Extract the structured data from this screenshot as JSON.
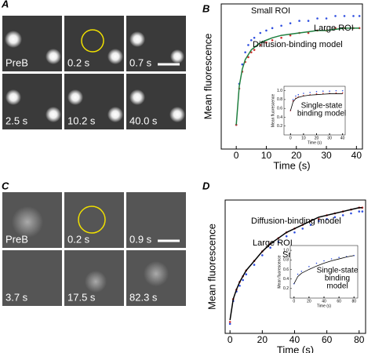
{
  "panel_labels": [
    "A",
    "B",
    "C",
    "D"
  ],
  "image_panels": [
    {
      "frames": [
        "PreB",
        "0.2 s",
        "0.7 s",
        "2.5 s",
        "10.2 s",
        "40.0 s"
      ]
    },
    {
      "frames": [
        "PreB",
        "0.2 s",
        "0.9 s",
        "3.7 s",
        "17.5 s",
        "82.3 s"
      ]
    }
  ],
  "chart_data": [
    {
      "type": "line",
      "x_label": "Time (s)",
      "y_label": "Mean fluorescence",
      "xlim": [
        -5,
        42
      ],
      "ylim": [
        0.45,
        1.05
      ],
      "xticks": [
        0,
        10,
        20,
        30,
        40
      ],
      "x": [
        0,
        1,
        2,
        3,
        4,
        5,
        6,
        8,
        10,
        12,
        15,
        18,
        21,
        24,
        27,
        30,
        33,
        36,
        39,
        41
      ],
      "series": [
        {
          "name": "Small ROI",
          "color": "#3050e0",
          "style": "points",
          "values": [
            0.55,
            0.72,
            0.8,
            0.85,
            0.88,
            0.9,
            0.91,
            0.93,
            0.94,
            0.95,
            0.96,
            0.97,
            0.98,
            0.98,
            0.99,
            0.99,
            1.0,
            1.0,
            1.0,
            1.0
          ]
        },
        {
          "name": "Large ROI",
          "color": "#d03030",
          "style": "points",
          "values": [
            0.55,
            0.7,
            0.77,
            0.81,
            0.83,
            0.85,
            0.86,
            0.88,
            0.89,
            0.9,
            0.91,
            0.92,
            0.93,
            0.93,
            0.94,
            0.94,
            0.95,
            0.95,
            0.95,
            0.95
          ]
        },
        {
          "name": "Diffusion-binding model",
          "color": "#208040",
          "style": "line",
          "values": [
            0.55,
            0.71,
            0.78,
            0.82,
            0.84,
            0.86,
            0.87,
            0.89,
            0.9,
            0.91,
            0.92,
            0.925,
            0.93,
            0.935,
            0.94,
            0.94,
            0.945,
            0.95,
            0.95,
            0.95
          ]
        }
      ]
    },
    {
      "type": "line",
      "x_label": "Time (s)",
      "y_label": "Mean fluorescence",
      "annotation": [
        "Single-state",
        "binding model"
      ],
      "xlim": [
        -5,
        42
      ],
      "ylim": [
        0,
        1.1
      ],
      "xticks": [
        0,
        10,
        20,
        30,
        40
      ],
      "yticks": [
        0.2,
        0.4,
        0.6,
        0.8,
        {
          "value": 1,
          "label": "1.0"
        }
      ],
      "x": [
        0,
        2,
        4,
        6,
        10,
        15,
        20,
        25,
        30,
        35,
        40
      ],
      "series": [
        {
          "color": "#3050e0",
          "style": "points",
          "values": [
            0.55,
            0.8,
            0.88,
            0.91,
            0.94,
            0.96,
            0.98,
            0.99,
            0.99,
            1.0,
            1.0
          ]
        },
        {
          "color": "#d03030",
          "style": "points",
          "values": [
            0.55,
            0.77,
            0.83,
            0.86,
            0.89,
            0.91,
            0.93,
            0.94,
            0.94,
            0.95,
            0.95
          ]
        },
        {
          "color": "#000000",
          "style": "line",
          "values": [
            0.55,
            0.75,
            0.82,
            0.85,
            0.88,
            0.9,
            0.91,
            0.92,
            0.93,
            0.93,
            0.93
          ]
        }
      ]
    },
    {
      "type": "line",
      "x_label": "Time (s)",
      "y_label": "Mean fluorescence",
      "xlim": [
        -3,
        84
      ],
      "ylim": [
        0.25,
        0.95
      ],
      "xticks": [
        0,
        20,
        40,
        60,
        80
      ],
      "x": [
        0,
        2,
        4,
        6,
        8,
        10,
        15,
        20,
        25,
        30,
        35,
        40,
        45,
        50,
        55,
        60,
        65,
        70,
        75,
        80,
        82
      ],
      "series": [
        {
          "name": "Small ROI",
          "color": "#3050e0",
          "style": "points",
          "values": [
            0.3,
            0.42,
            0.47,
            0.5,
            0.53,
            0.56,
            0.61,
            0.66,
            0.7,
            0.73,
            0.76,
            0.78,
            0.8,
            0.82,
            0.84,
            0.85,
            0.86,
            0.87,
            0.88,
            0.89,
            0.89
          ]
        },
        {
          "name": "Large ROI",
          "color": "#d03030",
          "style": "points",
          "values": [
            0.31,
            0.43,
            0.48,
            0.52,
            0.55,
            0.58,
            0.63,
            0.68,
            0.72,
            0.75,
            0.78,
            0.8,
            0.82,
            0.84,
            0.85,
            0.87,
            0.88,
            0.89,
            0.9,
            0.91,
            0.91
          ]
        },
        {
          "name": "Diffusion-binding model",
          "color": "#000000",
          "style": "line",
          "values": [
            0.32,
            0.43,
            0.48,
            0.52,
            0.55,
            0.58,
            0.63,
            0.68,
            0.72,
            0.75,
            0.78,
            0.8,
            0.82,
            0.84,
            0.86,
            0.87,
            0.88,
            0.89,
            0.9,
            0.91,
            0.91
          ]
        }
      ]
    },
    {
      "type": "line",
      "x_label": "Time (s)",
      "y_label": "Mean fluorescence",
      "annotation": [
        "Single-state",
        "binding",
        "model"
      ],
      "xlim": [
        -5,
        85
      ],
      "ylim": [
        0,
        1.1
      ],
      "xticks": [
        0,
        20,
        40,
        60,
        80
      ],
      "yticks": [
        0.2,
        0.4,
        0.6,
        0.8,
        {
          "value": 1,
          "label": "1.0"
        }
      ],
      "x": [
        0,
        5,
        10,
        20,
        30,
        40,
        50,
        60,
        70,
        80
      ],
      "series": [
        {
          "color": "#3050e0",
          "style": "points",
          "values": [
            0.3,
            0.5,
            0.56,
            0.66,
            0.73,
            0.78,
            0.82,
            0.85,
            0.87,
            0.89
          ]
        },
        {
          "color": "#000000",
          "style": "line",
          "values": [
            0.3,
            0.45,
            0.52,
            0.6,
            0.67,
            0.73,
            0.78,
            0.82,
            0.86,
            0.89
          ]
        }
      ]
    }
  ]
}
